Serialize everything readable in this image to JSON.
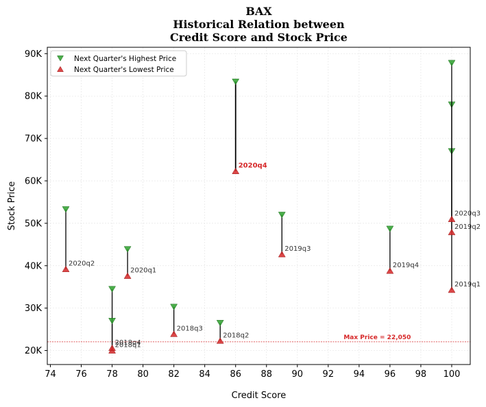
{
  "chart_data": {
    "type": "scatter",
    "title_lines": [
      "BAX",
      "Historical Relation between",
      "Credit Score and Stock Price"
    ],
    "xlabel": "Credit Score",
    "ylabel": "Stock Price",
    "xlim": [
      73.8,
      101.2
    ],
    "ylim": [
      16700,
      91500
    ],
    "x_ticks": [
      74,
      76,
      78,
      80,
      82,
      84,
      86,
      88,
      90,
      92,
      94,
      96,
      98,
      100
    ],
    "y_ticks": [
      {
        "value": 20000,
        "label": "20K"
      },
      {
        "value": 30000,
        "label": "30K"
      },
      {
        "value": 40000,
        "label": "40K"
      },
      {
        "value": 50000,
        "label": "50K"
      },
      {
        "value": 60000,
        "label": "60K"
      },
      {
        "value": 70000,
        "label": "70K"
      },
      {
        "value": 80000,
        "label": "80K"
      },
      {
        "value": 90000,
        "label": "90K"
      }
    ],
    "grid": true,
    "legend_position": "top-left",
    "series": [
      {
        "name": "Next Quarter's Highest Price",
        "marker": "triangle-down",
        "color": "#2ca02c"
      },
      {
        "name": "Next Quarter's Lowest Price",
        "marker": "triangle-up",
        "color": "#d62728"
      }
    ],
    "points": [
      {
        "label": "2018q1",
        "x": 78,
        "high": 34500,
        "low": 20000,
        "highlight": false
      },
      {
        "label": "2018q2",
        "x": 85,
        "high": 26500,
        "low": 22300,
        "highlight": false
      },
      {
        "label": "2018q3",
        "x": 82,
        "high": 30300,
        "low": 23900,
        "highlight": false
      },
      {
        "label": "2018q4",
        "x": 78,
        "high": 27000,
        "low": 20600,
        "highlight": false
      },
      {
        "label": "2019q1",
        "x": 100,
        "high": 67000,
        "low": 34300,
        "highlight": false
      },
      {
        "label": "2019q2",
        "x": 100,
        "high": 78000,
        "low": 47900,
        "highlight": false
      },
      {
        "label": "2019q3",
        "x": 89,
        "high": 52000,
        "low": 42700,
        "highlight": false
      },
      {
        "label": "2019q4",
        "x": 96,
        "high": 48700,
        "low": 38800,
        "highlight": false
      },
      {
        "label": "2020q1",
        "x": 79,
        "high": 43900,
        "low": 37600,
        "highlight": false
      },
      {
        "label": "2020q2",
        "x": 75,
        "high": 53300,
        "low": 39200,
        "highlight": false
      },
      {
        "label": "2020q3",
        "x": 100,
        "high": 87800,
        "low": 51000,
        "highlight": false
      },
      {
        "label": "2020q4",
        "x": 86,
        "high": 83400,
        "low": 62300,
        "highlight": true
      }
    ],
    "reference_line": {
      "value": 22050,
      "label": "Max Price = 22,050",
      "color": "#d62728",
      "label_x": 93
    }
  }
}
